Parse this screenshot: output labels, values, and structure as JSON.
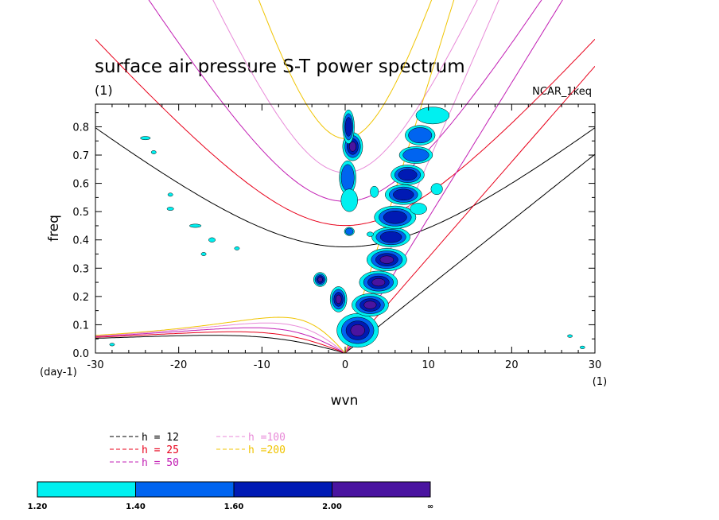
{
  "chart_data": {
    "type": "heatmap",
    "title": "surface air pressure S-T power spectrum",
    "subtitle": "(1)",
    "dataset_label": "NCAR_1keq",
    "xlabel": "wvn",
    "ylabel": "freq",
    "x_unit_label": "(1)",
    "y_unit_label": "(day-1)",
    "xlim": [
      -30,
      30
    ],
    "ylim": [
      0,
      0.88
    ],
    "x_ticks": [
      -30,
      -20,
      -10,
      0,
      10,
      20,
      30
    ],
    "x_tick_labels": [
      "-30",
      "-20",
      "-10",
      "0",
      "10",
      "20",
      "30"
    ],
    "y_ticks": [
      0,
      0.1,
      0.2,
      0.3,
      0.4,
      0.5,
      0.6,
      0.7,
      0.8
    ],
    "y_tick_labels": [
      "0.0",
      "0.1",
      "0.2",
      "0.3",
      "0.4",
      "0.5",
      "0.6",
      "0.7",
      "0.8"
    ],
    "grid": false,
    "dispersion_legend": [
      {
        "label": "h = 12",
        "color": "#000000",
        "h": 12
      },
      {
        "label": "h = 25",
        "color": "#e8001a",
        "h": 25
      },
      {
        "label": "h = 50",
        "color": "#c21fb4",
        "h": 50
      },
      {
        "label": "h =100",
        "color": "#e88ad8",
        "h": 100
      },
      {
        "label": "h =200",
        "color": "#f0c400",
        "h": 200
      }
    ],
    "colorbar": {
      "levels": [
        "1.20",
        "1.40",
        "1.60",
        "2.00",
        "∞"
      ],
      "colors": [
        "#00f0f0",
        "#0064f0",
        "#001ab4",
        "#4a14a0"
      ]
    },
    "blobs": [
      {
        "x": 0.9,
        "y": 0.73,
        "rx": 1.2,
        "ry": 0.05,
        "level": 3
      },
      {
        "x": 0.4,
        "y": 0.8,
        "rx": 0.7,
        "ry": 0.06,
        "level": 2
      },
      {
        "x": 0.3,
        "y": 0.62,
        "rx": 1.0,
        "ry": 0.06,
        "level": 1
      },
      {
        "x": 0.5,
        "y": 0.54,
        "rx": 1.0,
        "ry": 0.04,
        "level": 0
      },
      {
        "x": 0.5,
        "y": 0.43,
        "rx": 0.6,
        "ry": 0.015,
        "level": 1
      },
      {
        "x": -3.0,
        "y": 0.26,
        "rx": 0.8,
        "ry": 0.025,
        "level": 3
      },
      {
        "x": -0.8,
        "y": 0.19,
        "rx": 1.0,
        "ry": 0.045,
        "level": 3
      },
      {
        "x": 1.5,
        "y": 0.08,
        "rx": 2.5,
        "ry": 0.06,
        "level": 3
      },
      {
        "x": 3.0,
        "y": 0.17,
        "rx": 2.2,
        "ry": 0.04,
        "level": 3
      },
      {
        "x": 4.0,
        "y": 0.25,
        "rx": 2.3,
        "ry": 0.04,
        "level": 3
      },
      {
        "x": 5.0,
        "y": 0.33,
        "rx": 2.4,
        "ry": 0.04,
        "level": 3
      },
      {
        "x": 5.5,
        "y": 0.41,
        "rx": 2.3,
        "ry": 0.035,
        "level": 2
      },
      {
        "x": 6.0,
        "y": 0.48,
        "rx": 2.5,
        "ry": 0.04,
        "level": 2
      },
      {
        "x": 7.0,
        "y": 0.56,
        "rx": 2.2,
        "ry": 0.035,
        "level": 2
      },
      {
        "x": 7.5,
        "y": 0.63,
        "rx": 2.0,
        "ry": 0.035,
        "level": 2
      },
      {
        "x": 8.5,
        "y": 0.7,
        "rx": 2.0,
        "ry": 0.03,
        "level": 1
      },
      {
        "x": 9.0,
        "y": 0.77,
        "rx": 1.8,
        "ry": 0.035,
        "level": 1
      },
      {
        "x": 10.5,
        "y": 0.84,
        "rx": 2.0,
        "ry": 0.03,
        "level": 0
      },
      {
        "x": 11.0,
        "y": 0.58,
        "rx": 0.7,
        "ry": 0.02,
        "level": 0
      },
      {
        "x": 8.8,
        "y": 0.51,
        "rx": 1.0,
        "ry": 0.02,
        "level": 0
      },
      {
        "x": -24.0,
        "y": 0.76,
        "rx": 0.6,
        "ry": 0.006,
        "level": 0
      },
      {
        "x": -21.0,
        "y": 0.56,
        "rx": 0.3,
        "ry": 0.006,
        "level": 0
      },
      {
        "x": -18.0,
        "y": 0.45,
        "rx": 0.7,
        "ry": 0.006,
        "level": 0
      },
      {
        "x": -16.0,
        "y": 0.4,
        "rx": 0.4,
        "ry": 0.008,
        "level": 0
      },
      {
        "x": -21.0,
        "y": 0.51,
        "rx": 0.4,
        "ry": 0.006,
        "level": 0
      },
      {
        "x": -13.0,
        "y": 0.37,
        "rx": 0.3,
        "ry": 0.006,
        "level": 0
      },
      {
        "x": -17.0,
        "y": 0.35,
        "rx": 0.3,
        "ry": 0.006,
        "level": 0
      },
      {
        "x": 3.0,
        "y": 0.42,
        "rx": 0.4,
        "ry": 0.008,
        "level": 0
      },
      {
        "x": -23.0,
        "y": 0.71,
        "rx": 0.3,
        "ry": 0.006,
        "level": 0
      },
      {
        "x": -28.0,
        "y": 0.03,
        "rx": 0.3,
        "ry": 0.005,
        "level": 0
      },
      {
        "x": 27.0,
        "y": 0.06,
        "rx": 0.3,
        "ry": 0.005,
        "level": 0
      },
      {
        "x": 28.5,
        "y": 0.02,
        "rx": 0.3,
        "ry": 0.005,
        "level": 0
      },
      {
        "x": 3.5,
        "y": 0.57,
        "rx": 0.5,
        "ry": 0.02,
        "level": 0
      }
    ]
  }
}
